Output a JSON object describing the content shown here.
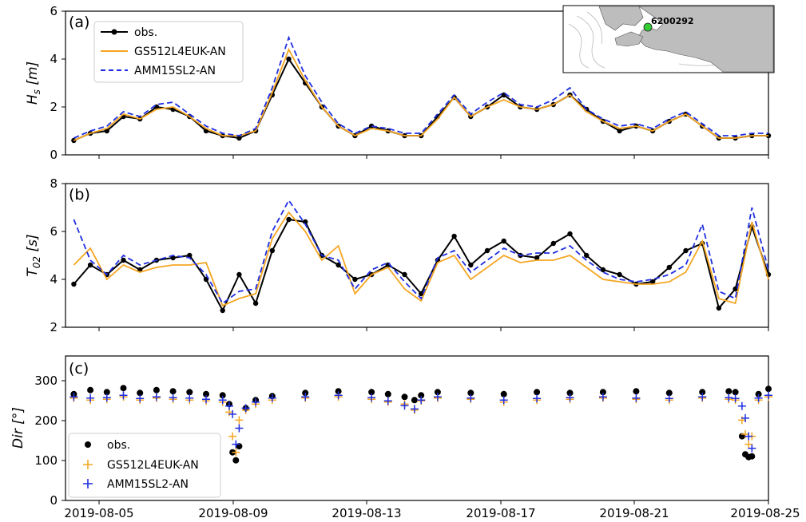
{
  "chart_data": [
    {
      "type": "line",
      "panel_label": "(a)",
      "ylabel_main": "H",
      "ylabel_sub": "s",
      "ylabel_unit": "[m]",
      "ylim": [
        0,
        6
      ],
      "yticks": [
        "0",
        "2",
        "4",
        "6"
      ],
      "legend_position": "top-left",
      "series": [
        {
          "name": "obs.",
          "style": "black-line-dots",
          "x": [
            4.0,
            4.5,
            5.0,
            5.5,
            6.0,
            6.5,
            7.0,
            7.5,
            8.0,
            8.5,
            9.0,
            9.5,
            10.0,
            10.5,
            11.0,
            11.5,
            12.0,
            12.5,
            13.0,
            13.5,
            14.0,
            14.5,
            15.0,
            15.5,
            16.0,
            16.5,
            17.0,
            17.5,
            18.0,
            18.5,
            19.0,
            19.5,
            20.0,
            20.5,
            21.0,
            21.5,
            22.0,
            22.5,
            23.0,
            23.5,
            24.0,
            24.5,
            25.0
          ],
          "values": [
            0.6,
            0.9,
            1.0,
            1.6,
            1.5,
            2.0,
            1.9,
            1.6,
            1.0,
            0.8,
            0.7,
            1.0,
            2.5,
            4.0,
            3.0,
            2.0,
            1.2,
            0.8,
            1.2,
            1.0,
            0.8,
            0.8,
            1.6,
            2.4,
            1.6,
            2.0,
            2.5,
            2.0,
            1.9,
            2.1,
            2.5,
            1.9,
            1.4,
            1.0,
            1.2,
            1.0,
            1.4,
            1.7,
            1.2,
            0.7,
            0.7,
            0.8,
            0.8
          ]
        },
        {
          "name": "GS512L4EUK-AN",
          "style": "orange-line",
          "x": [
            4.0,
            4.5,
            5.0,
            5.5,
            6.0,
            6.5,
            7.0,
            7.5,
            8.0,
            8.5,
            9.0,
            9.5,
            10.0,
            10.5,
            11.0,
            11.5,
            12.0,
            12.5,
            13.0,
            13.5,
            14.0,
            14.5,
            15.0,
            15.5,
            16.0,
            16.5,
            17.0,
            17.5,
            18.0,
            18.5,
            19.0,
            19.5,
            20.0,
            20.5,
            21.0,
            21.5,
            22.0,
            22.5,
            23.0,
            23.5,
            24.0,
            24.5,
            25.0
          ],
          "values": [
            0.6,
            0.9,
            1.1,
            1.7,
            1.5,
            1.9,
            2.0,
            1.6,
            1.1,
            0.8,
            0.8,
            1.0,
            2.6,
            4.4,
            3.1,
            2.0,
            1.2,
            0.8,
            1.1,
            1.0,
            0.8,
            0.8,
            1.5,
            2.4,
            1.6,
            2.0,
            2.3,
            2.0,
            1.9,
            2.1,
            2.5,
            1.8,
            1.4,
            1.1,
            1.2,
            1.0,
            1.4,
            1.7,
            1.2,
            0.7,
            0.7,
            0.8,
            0.8
          ]
        },
        {
          "name": "AMM15SL2-AN",
          "style": "blue-dashed",
          "x": [
            4.0,
            4.5,
            5.0,
            5.5,
            6.0,
            6.5,
            7.0,
            7.5,
            8.0,
            8.5,
            9.0,
            9.5,
            10.0,
            10.5,
            11.0,
            11.5,
            12.0,
            12.5,
            13.0,
            13.5,
            14.0,
            14.5,
            15.0,
            15.5,
            16.0,
            16.5,
            17.0,
            17.5,
            18.0,
            18.5,
            19.0,
            19.5,
            20.0,
            20.5,
            21.0,
            21.5,
            22.0,
            22.5,
            23.0,
            23.5,
            24.0,
            24.5,
            25.0
          ],
          "values": [
            0.7,
            1.0,
            1.2,
            1.8,
            1.6,
            2.1,
            2.2,
            1.7,
            1.2,
            0.9,
            0.8,
            1.1,
            2.8,
            4.9,
            3.3,
            2.2,
            1.3,
            0.9,
            1.2,
            1.1,
            0.9,
            0.9,
            1.7,
            2.5,
            1.7,
            2.2,
            2.6,
            2.1,
            2.0,
            2.3,
            2.8,
            1.9,
            1.5,
            1.2,
            1.3,
            1.1,
            1.5,
            1.8,
            1.3,
            0.8,
            0.8,
            0.9,
            0.9
          ]
        }
      ]
    },
    {
      "type": "line",
      "panel_label": "(b)",
      "ylabel_main": "T",
      "ylabel_sub": "02",
      "ylabel_unit": "[s]",
      "ylim": [
        2,
        8
      ],
      "yticks": [
        "2",
        "4",
        "6",
        "8"
      ],
      "series": [
        {
          "name": "obs.",
          "style": "black-line-dots",
          "x": [
            4.0,
            4.5,
            5.0,
            5.5,
            6.0,
            6.5,
            7.0,
            7.5,
            8.0,
            8.5,
            9.0,
            9.5,
            10.0,
            10.5,
            11.0,
            11.5,
            12.0,
            12.5,
            13.0,
            13.5,
            14.0,
            14.5,
            15.0,
            15.5,
            16.0,
            16.5,
            17.0,
            17.5,
            18.0,
            18.5,
            19.0,
            19.5,
            20.0,
            20.5,
            21.0,
            21.5,
            22.0,
            22.5,
            23.0,
            23.5,
            24.0,
            24.5,
            25.0
          ],
          "values": [
            3.8,
            4.6,
            4.2,
            4.8,
            4.4,
            4.8,
            4.9,
            5.0,
            4.0,
            2.7,
            4.2,
            3.0,
            5.2,
            6.5,
            6.4,
            5.0,
            4.6,
            4.0,
            4.2,
            4.6,
            4.2,
            3.4,
            4.8,
            5.8,
            4.6,
            5.2,
            5.6,
            5.0,
            4.9,
            5.5,
            5.9,
            5.0,
            4.4,
            4.2,
            3.8,
            3.9,
            4.5,
            5.2,
            5.5,
            2.8,
            3.6,
            6.2,
            4.2
          ]
        },
        {
          "name": "GS512L4EUK-AN",
          "style": "orange-line",
          "x": [
            4.0,
            4.5,
            5.0,
            5.5,
            6.0,
            6.5,
            7.0,
            7.5,
            8.0,
            8.5,
            9.0,
            9.5,
            10.0,
            10.5,
            11.0,
            11.5,
            12.0,
            12.5,
            13.0,
            13.5,
            14.0,
            14.5,
            15.0,
            15.5,
            16.0,
            16.5,
            17.0,
            17.5,
            18.0,
            18.5,
            19.0,
            19.5,
            20.0,
            20.5,
            21.0,
            21.5,
            22.0,
            22.5,
            23.0,
            23.5,
            24.0,
            24.5,
            25.0
          ],
          "values": [
            4.6,
            5.3,
            4.0,
            4.6,
            4.3,
            4.5,
            4.6,
            4.6,
            4.7,
            2.9,
            3.2,
            3.4,
            5.7,
            6.8,
            6.0,
            4.8,
            5.4,
            3.4,
            4.2,
            4.5,
            3.6,
            3.1,
            4.7,
            5.0,
            4.0,
            4.5,
            5.0,
            4.7,
            4.8,
            4.8,
            5.0,
            4.5,
            4.0,
            3.9,
            3.8,
            3.8,
            3.9,
            4.3,
            5.6,
            3.2,
            3.0,
            6.4,
            4.0
          ]
        },
        {
          "name": "AMM15SL2-AN",
          "style": "blue-dashed",
          "x": [
            4.0,
            4.5,
            5.0,
            5.5,
            6.0,
            6.5,
            7.0,
            7.5,
            8.0,
            8.5,
            9.0,
            9.5,
            10.0,
            10.5,
            11.0,
            11.5,
            12.0,
            12.5,
            13.0,
            13.5,
            14.0,
            14.5,
            15.0,
            15.5,
            16.0,
            16.5,
            17.0,
            17.5,
            18.0,
            18.5,
            19.0,
            19.5,
            20.0,
            20.5,
            21.0,
            21.5,
            22.0,
            22.5,
            23.0,
            23.5,
            24.0,
            24.5,
            25.0
          ],
          "values": [
            6.5,
            4.8,
            4.2,
            5.0,
            4.6,
            4.8,
            5.0,
            4.9,
            4.2,
            3.0,
            3.5,
            3.6,
            6.0,
            7.3,
            6.3,
            5.0,
            4.8,
            3.6,
            4.4,
            4.7,
            3.9,
            3.2,
            4.9,
            5.2,
            4.3,
            4.8,
            5.3,
            5.0,
            5.1,
            5.1,
            5.4,
            4.8,
            4.3,
            4.0,
            3.9,
            4.0,
            4.2,
            4.6,
            6.3,
            3.5,
            3.2,
            7.0,
            4.4
          ]
        }
      ]
    },
    {
      "type": "scatter",
      "panel_label": "(c)",
      "ylabel_main": "Dir",
      "ylabel_unit": "[°]",
      "ylim": [
        0,
        360
      ],
      "yticks": [
        "0",
        "100",
        "200",
        "300"
      ],
      "legend_position": "bottom-left",
      "xtick_labels": [
        "2019-08-05",
        "2019-08-09",
        "2019-08-13",
        "2019-08-17",
        "2019-08-21",
        "2019-08-25"
      ],
      "series": [
        {
          "name": "obs.",
          "style": "black-dots",
          "x": [
            4.0,
            4.5,
            5.0,
            5.5,
            6.0,
            6.5,
            7.0,
            7.5,
            8.0,
            8.5,
            8.7,
            8.8,
            8.9,
            9.0,
            9.2,
            9.5,
            10.0,
            11.0,
            12.0,
            13.0,
            13.5,
            14.0,
            14.3,
            14.5,
            15.0,
            16.0,
            17.0,
            18.0,
            19.0,
            20.0,
            21.0,
            22.0,
            23.0,
            23.8,
            24.0,
            24.2,
            24.3,
            24.4,
            24.5,
            24.7,
            25.0
          ],
          "values": [
            265,
            275,
            270,
            280,
            268,
            275,
            272,
            270,
            265,
            262,
            240,
            120,
            100,
            135,
            230,
            250,
            260,
            268,
            272,
            270,
            265,
            258,
            250,
            262,
            270,
            268,
            265,
            270,
            268,
            270,
            272,
            268,
            270,
            272,
            270,
            160,
            115,
            108,
            110,
            265,
            278
          ]
        },
        {
          "name": "GS512L4EUK-AN",
          "style": "orange-plus",
          "x": [
            4.0,
            4.5,
            5.0,
            5.5,
            6.0,
            6.5,
            7.0,
            7.5,
            8.0,
            8.5,
            8.7,
            8.8,
            8.9,
            9.0,
            9.2,
            9.5,
            10.0,
            11.0,
            12.0,
            13.0,
            13.5,
            14.0,
            14.3,
            14.5,
            15.0,
            16.0,
            17.0,
            18.0,
            19.0,
            20.0,
            21.0,
            22.0,
            23.0,
            23.8,
            24.0,
            24.2,
            24.3,
            24.4,
            24.5,
            24.7,
            25.0
          ],
          "values": [
            255,
            250,
            252,
            258,
            250,
            255,
            252,
            250,
            248,
            245,
            220,
            160,
            120,
            200,
            225,
            240,
            250,
            255,
            258,
            252,
            245,
            240,
            225,
            248,
            255,
            252,
            245,
            250,
            252,
            255,
            252,
            250,
            255,
            252,
            250,
            200,
            165,
            140,
            160,
            250,
            258
          ]
        },
        {
          "name": "AMM15SL2-AN",
          "style": "blue-plus",
          "x": [
            4.0,
            4.5,
            5.0,
            5.5,
            6.0,
            6.5,
            7.0,
            7.5,
            8.0,
            8.5,
            8.7,
            8.8,
            8.9,
            9.0,
            9.2,
            9.5,
            10.0,
            11.0,
            12.0,
            13.0,
            13.5,
            14.0,
            14.3,
            14.5,
            15.0,
            16.0,
            17.0,
            18.0,
            19.0,
            20.0,
            21.0,
            22.0,
            23.0,
            23.8,
            24.0,
            24.2,
            24.3,
            24.4,
            24.5,
            24.7,
            25.0
          ],
          "values": [
            258,
            255,
            256,
            262,
            254,
            258,
            256,
            255,
            252,
            250,
            235,
            215,
            140,
            180,
            230,
            245,
            255,
            258,
            262,
            256,
            248,
            236,
            228,
            250,
            258,
            255,
            250,
            254,
            256,
            258,
            255,
            254,
            258,
            256,
            254,
            235,
            205,
            160,
            130,
            255,
            262
          ]
        }
      ]
    }
  ],
  "inset_map": {
    "station_label": "6200292",
    "marker_color": "#33cc33",
    "land_color": "#bdbdbd"
  },
  "colors": {
    "obs": "#000000",
    "gs512": "#f5a623",
    "amm15": "#1f2ee0"
  }
}
